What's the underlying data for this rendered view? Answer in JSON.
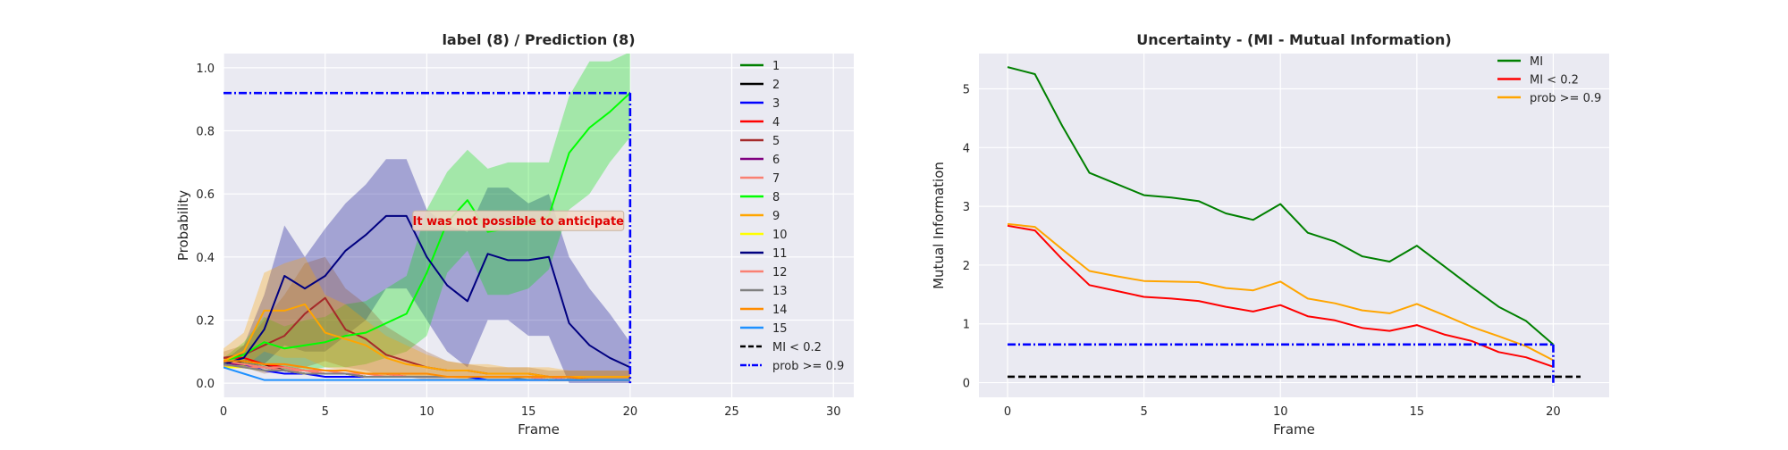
{
  "figure": {
    "background": "#ffffff",
    "axes_facecolor": "#eaeaf2",
    "grid_color": "#ffffff"
  },
  "chart_data": [
    {
      "type": "line",
      "title": "label (8) / Prediction (8)",
      "xlabel": "Frame",
      "ylabel": "Probability",
      "xlim": [
        0,
        31
      ],
      "ylim": [
        -0.045,
        1.045
      ],
      "xticks": [
        0,
        5,
        10,
        15,
        20,
        25,
        30
      ],
      "yticks": [
        0.0,
        0.2,
        0.4,
        0.6,
        0.8,
        1.0
      ],
      "xtick_labels": [
        "0",
        "5",
        "10",
        "15",
        "20",
        "25",
        "30"
      ],
      "ytick_labels": [
        "0.0",
        "0.2",
        "0.4",
        "0.6",
        "0.8",
        "1.0"
      ],
      "grid": true,
      "legend_position": "right",
      "annotation": {
        "text": "It was not possible to anticipate",
        "x": 14.5,
        "y": 0.515,
        "color": "#e00000",
        "box_color": "#f3d9c8"
      },
      "x": [
        0,
        1,
        2,
        3,
        4,
        5,
        6,
        7,
        8,
        9,
        10,
        11,
        12,
        13,
        14,
        15,
        16,
        17,
        18,
        19,
        20
      ],
      "series": [
        {
          "name": "1",
          "color": "#008000",
          "values": [
            0.07,
            0.06,
            0.05,
            0.04,
            0.03,
            0.03,
            0.03,
            0.02,
            0.02,
            0.02,
            0.02,
            0.02,
            0.02,
            0.02,
            0.02,
            0.02,
            0.02,
            0.01,
            0.01,
            0.01,
            0.01
          ]
        },
        {
          "name": "2",
          "color": "#000000",
          "values": [
            0.06,
            0.07,
            0.06,
            0.04,
            0.03,
            0.03,
            0.03,
            0.02,
            0.02,
            0.02,
            0.02,
            0.02,
            0.02,
            0.02,
            0.02,
            0.02,
            0.01,
            0.01,
            0.01,
            0.01,
            0.01
          ]
        },
        {
          "name": "3",
          "color": "#0000ff",
          "values": [
            0.07,
            0.06,
            0.04,
            0.03,
            0.03,
            0.02,
            0.02,
            0.02,
            0.02,
            0.02,
            0.02,
            0.02,
            0.02,
            0.01,
            0.01,
            0.01,
            0.01,
            0.01,
            0.01,
            0.01,
            0.01
          ]
        },
        {
          "name": "4",
          "color": "#ff0000",
          "values": [
            0.08,
            0.08,
            0.06,
            0.05,
            0.04,
            0.03,
            0.03,
            0.03,
            0.03,
            0.02,
            0.02,
            0.02,
            0.02,
            0.02,
            0.02,
            0.02,
            0.02,
            0.02,
            0.01,
            0.01,
            0.01
          ]
        },
        {
          "name": "5",
          "color": "#a52a2a",
          "values": [
            0.08,
            0.09,
            0.12,
            0.15,
            0.22,
            0.27,
            0.17,
            0.14,
            0.09,
            0.07,
            0.05,
            0.04,
            0.04,
            0.03,
            0.03,
            0.03,
            0.02,
            0.02,
            0.02,
            0.02,
            0.02
          ]
        },
        {
          "name": "6",
          "color": "#800080",
          "values": [
            0.06,
            0.06,
            0.05,
            0.04,
            0.03,
            0.03,
            0.03,
            0.02,
            0.02,
            0.02,
            0.02,
            0.02,
            0.02,
            0.02,
            0.02,
            0.02,
            0.01,
            0.01,
            0.01,
            0.01,
            0.01
          ]
        },
        {
          "name": "7",
          "color": "#fa8072",
          "values": [
            0.07,
            0.06,
            0.05,
            0.05,
            0.04,
            0.04,
            0.03,
            0.03,
            0.03,
            0.02,
            0.02,
            0.02,
            0.02,
            0.02,
            0.02,
            0.02,
            0.02,
            0.01,
            0.01,
            0.01,
            0.01
          ]
        },
        {
          "name": "8",
          "color": "#00ff00",
          "values": [
            0.07,
            0.09,
            0.13,
            0.11,
            0.12,
            0.13,
            0.15,
            0.16,
            0.19,
            0.22,
            0.35,
            0.51,
            0.58,
            0.48,
            0.49,
            0.5,
            0.53,
            0.73,
            0.81,
            0.86,
            0.92
          ]
        },
        {
          "name": "9",
          "color": "#ffa500",
          "values": [
            0.07,
            0.1,
            0.23,
            0.23,
            0.25,
            0.16,
            0.14,
            0.12,
            0.08,
            0.06,
            0.05,
            0.04,
            0.04,
            0.03,
            0.03,
            0.03,
            0.02,
            0.02,
            0.02,
            0.02,
            0.02
          ]
        },
        {
          "name": "10",
          "color": "#ffff00",
          "values": [
            0.05,
            0.05,
            0.04,
            0.04,
            0.03,
            0.03,
            0.03,
            0.02,
            0.02,
            0.02,
            0.02,
            0.02,
            0.02,
            0.02,
            0.02,
            0.02,
            0.01,
            0.01,
            0.01,
            0.01,
            0.01
          ]
        },
        {
          "name": "11",
          "color": "#000080",
          "values": [
            0.06,
            0.08,
            0.17,
            0.34,
            0.3,
            0.34,
            0.42,
            0.47,
            0.53,
            0.53,
            0.4,
            0.31,
            0.26,
            0.41,
            0.39,
            0.39,
            0.4,
            0.19,
            0.12,
            0.08,
            0.05
          ]
        },
        {
          "name": "12",
          "color": "#fa8072",
          "values": [
            0.06,
            0.05,
            0.05,
            0.04,
            0.04,
            0.03,
            0.03,
            0.03,
            0.02,
            0.02,
            0.02,
            0.02,
            0.02,
            0.02,
            0.02,
            0.02,
            0.01,
            0.01,
            0.01,
            0.01,
            0.01
          ]
        },
        {
          "name": "13",
          "color": "#808080",
          "values": [
            0.06,
            0.05,
            0.04,
            0.04,
            0.03,
            0.03,
            0.03,
            0.02,
            0.02,
            0.02,
            0.02,
            0.02,
            0.02,
            0.02,
            0.02,
            0.01,
            0.01,
            0.01,
            0.01,
            0.01,
            0.01
          ]
        },
        {
          "name": "14",
          "color": "#ff8c00",
          "values": [
            0.07,
            0.07,
            0.06,
            0.06,
            0.05,
            0.04,
            0.04,
            0.03,
            0.03,
            0.03,
            0.03,
            0.02,
            0.02,
            0.02,
            0.02,
            0.02,
            0.02,
            0.02,
            0.01,
            0.01,
            0.01
          ]
        },
        {
          "name": "15",
          "color": "#1e90ff",
          "values": [
            0.05,
            0.03,
            0.01,
            0.01,
            0.01,
            0.01,
            0.01,
            0.01,
            0.01,
            0.01,
            0.01,
            0.01,
            0.01,
            0.01,
            0.01,
            0.01,
            0.01,
            0.01,
            0.01,
            0.01,
            0.01
          ]
        }
      ],
      "bands": [
        {
          "series": "11",
          "color": "#00008b",
          "opacity": 0.3,
          "lower": [
            0.05,
            0.05,
            0.06,
            0.12,
            0.1,
            0.1,
            0.15,
            0.2,
            0.3,
            0.3,
            0.2,
            0.1,
            0.05,
            0.2,
            0.2,
            0.15,
            0.15,
            0.0,
            0.0,
            0.0,
            0.0
          ],
          "upper": [
            0.07,
            0.12,
            0.28,
            0.5,
            0.4,
            0.49,
            0.57,
            0.63,
            0.71,
            0.71,
            0.55,
            0.5,
            0.48,
            0.62,
            0.62,
            0.57,
            0.6,
            0.4,
            0.3,
            0.22,
            0.13
          ]
        },
        {
          "series": "8",
          "color": "#00e000",
          "opacity": 0.3,
          "lower": [
            0.06,
            0.05,
            0.05,
            0.04,
            0.04,
            0.05,
            0.05,
            0.06,
            0.08,
            0.1,
            0.15,
            0.35,
            0.42,
            0.28,
            0.28,
            0.3,
            0.36,
            0.55,
            0.6,
            0.7,
            0.78
          ]
        },
        {
          "series": "5",
          "color": "#8b4513",
          "opacity": 0.25,
          "lower": [
            0.05,
            0.05,
            0.03,
            0.04,
            0.05,
            0.07,
            0.05,
            0.04,
            0.02,
            0.02,
            0.01,
            0.01,
            0.01,
            0.01,
            0.01,
            0.01,
            0.01,
            0.01,
            0.01,
            0.01,
            0.01
          ],
          "upper": [
            0.1,
            0.12,
            0.2,
            0.28,
            0.38,
            0.4,
            0.3,
            0.25,
            0.18,
            0.14,
            0.1,
            0.07,
            0.06,
            0.05,
            0.05,
            0.05,
            0.04,
            0.04,
            0.04,
            0.04,
            0.04
          ]
        },
        {
          "series": "9",
          "color": "#ffa500",
          "opacity": 0.3,
          "lower": [
            0.05,
            0.05,
            0.1,
            0.08,
            0.08,
            0.05,
            0.04,
            0.03,
            0.02,
            0.02,
            0.02,
            0.02,
            0.01,
            0.01,
            0.01,
            0.01,
            0.01,
            0.01,
            0.01,
            0.01,
            0.01
          ],
          "upper": [
            0.11,
            0.16,
            0.35,
            0.38,
            0.4,
            0.28,
            0.25,
            0.2,
            0.15,
            0.12,
            0.09,
            0.07,
            0.06,
            0.06,
            0.05,
            0.05,
            0.05,
            0.04,
            0.04,
            0.04,
            0.04
          ]
        }
      ],
      "reference_lines": [
        {
          "name": "MI < 0.2",
          "color": "#000000",
          "style": "dashed",
          "segments": []
        },
        {
          "name": "prob >= 0.9",
          "color": "#0000ff",
          "style": "dashdot",
          "segments": [
            {
              "x": [
                0,
                20
              ],
              "y": [
                0.92,
                0.92
              ]
            },
            {
              "x": [
                20,
                20
              ],
              "y": [
                0.92,
                0.0
              ]
            }
          ]
        }
      ]
    },
    {
      "type": "line",
      "title": "Uncertainty - (MI - Mutual Information)",
      "xlabel": "Frame",
      "ylabel": "Mutual Information",
      "xlim": [
        -1.05,
        22.05
      ],
      "ylim": [
        -0.25,
        5.6
      ],
      "xticks": [
        0,
        5,
        10,
        15,
        20
      ],
      "yticks": [
        0,
        1,
        2,
        3,
        4,
        5
      ],
      "xtick_labels": [
        "0",
        "5",
        "10",
        "15",
        "20"
      ],
      "ytick_labels": [
        "0",
        "1",
        "2",
        "3",
        "4",
        "5"
      ],
      "grid": true,
      "legend_position": "top-right",
      "x": [
        0,
        1,
        2,
        3,
        4,
        5,
        6,
        7,
        8,
        9,
        10,
        11,
        12,
        13,
        14,
        15,
        16,
        17,
        18,
        19,
        20
      ],
      "series": [
        {
          "name": "MI",
          "color": "#008000",
          "values": [
            5.37,
            5.25,
            4.37,
            3.57,
            3.38,
            3.19,
            3.15,
            3.09,
            2.88,
            2.77,
            3.04,
            2.55,
            2.4,
            2.15,
            2.06,
            2.33,
            1.98,
            1.63,
            1.29,
            1.05,
            0.65
          ]
        },
        {
          "name": "MI < 0.2",
          "color": "#ff0000",
          "values": [
            2.67,
            2.59,
            2.1,
            1.66,
            1.56,
            1.46,
            1.43,
            1.39,
            1.29,
            1.21,
            1.32,
            1.13,
            1.06,
            0.93,
            0.88,
            0.98,
            0.82,
            0.71,
            0.52,
            0.43,
            0.27
          ]
        },
        {
          "name": "prob >= 0.9",
          "color": "#ffa500",
          "values": [
            2.7,
            2.65,
            2.27,
            1.9,
            1.81,
            1.73,
            1.72,
            1.71,
            1.61,
            1.57,
            1.72,
            1.43,
            1.35,
            1.23,
            1.18,
            1.34,
            1.15,
            0.95,
            0.79,
            0.62,
            0.38
          ]
        }
      ],
      "reference_lines": [
        {
          "name": "MI < 0.2 threshold",
          "color": "#000000",
          "style": "dashed",
          "segments": [
            {
              "x": [
                0,
                21
              ],
              "y": [
                0.1,
                0.1
              ]
            }
          ]
        },
        {
          "name": "prob >= 0.9 threshold",
          "color": "#0000ff",
          "style": "dashdot",
          "segments": [
            {
              "x": [
                0,
                20
              ],
              "y": [
                0.65,
                0.65
              ]
            },
            {
              "x": [
                20,
                20
              ],
              "y": [
                0.65,
                -0.05
              ]
            }
          ]
        }
      ]
    }
  ],
  "legends": {
    "left": [
      {
        "label": "1",
        "color": "#008000",
        "style": "solid"
      },
      {
        "label": "2",
        "color": "#000000",
        "style": "solid"
      },
      {
        "label": "3",
        "color": "#0000ff",
        "style": "solid"
      },
      {
        "label": "4",
        "color": "#ff0000",
        "style": "solid"
      },
      {
        "label": "5",
        "color": "#a52a2a",
        "style": "solid"
      },
      {
        "label": "6",
        "color": "#800080",
        "style": "solid"
      },
      {
        "label": "7",
        "color": "#fa8072",
        "style": "solid"
      },
      {
        "label": "8",
        "color": "#00ff00",
        "style": "solid"
      },
      {
        "label": "9",
        "color": "#ffa500",
        "style": "solid"
      },
      {
        "label": "10",
        "color": "#ffff00",
        "style": "solid"
      },
      {
        "label": "11",
        "color": "#000080",
        "style": "solid"
      },
      {
        "label": "12",
        "color": "#fa8072",
        "style": "solid"
      },
      {
        "label": "13",
        "color": "#808080",
        "style": "solid"
      },
      {
        "label": "14",
        "color": "#ff8c00",
        "style": "solid"
      },
      {
        "label": "15",
        "color": "#1e90ff",
        "style": "solid"
      },
      {
        "label": "MI < 0.2",
        "color": "#000000",
        "style": "dashed"
      },
      {
        "label": "prob >= 0.9",
        "color": "#0000ff",
        "style": "dashdot"
      }
    ],
    "right": [
      {
        "label": "MI",
        "color": "#008000",
        "style": "solid"
      },
      {
        "label": "MI < 0.2",
        "color": "#ff0000",
        "style": "solid"
      },
      {
        "label": "prob >= 0.9",
        "color": "#ffa500",
        "style": "solid"
      }
    ]
  }
}
